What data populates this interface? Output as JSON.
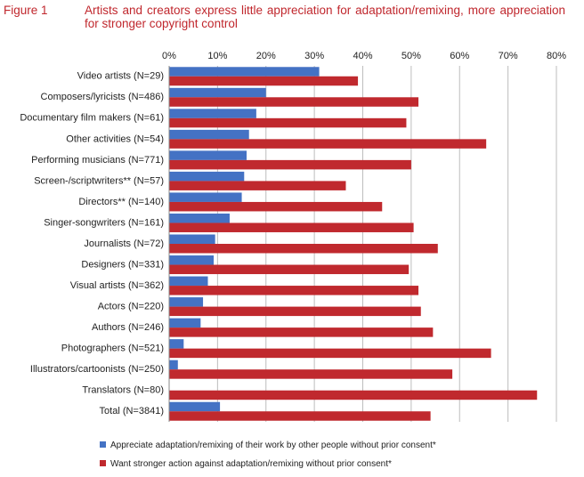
{
  "figure": {
    "label": "Figure 1",
    "title": "Artists and creators express little appreciation for adaptation/remixing, more appreciation for stronger copyright control"
  },
  "chart_data": {
    "type": "bar",
    "orientation": "horizontal",
    "title": "Artists and creators express little appreciation for adaptation/remixing, more appreciation for stronger copyright control",
    "xlim": [
      0,
      80
    ],
    "x_ticks": [
      "0%",
      "10%",
      "20%",
      "30%",
      "40%",
      "50%",
      "60%",
      "70%",
      "80%"
    ],
    "grid": true,
    "legend_position": "bottom",
    "categories": [
      "Video artists (N=29)",
      "Composers/lyricists (N=486)",
      "Documentary film makers (N=61)",
      "Other activities (N=54)",
      "Performing musicians (N=771)",
      "Screen-/scriptwriters** (N=57)",
      "Directors** (N=140)",
      "Singer-songwriters (N=161)",
      "Journalists (N=72)",
      "Designers (N=331)",
      "Visual artists (N=362)",
      "Actors (N=220)",
      "Authors (N=246)",
      "Photographers (N=521)",
      "Illustrators/cartoonists (N=250)",
      "Translators (N=80)",
      "Total (N=3841)"
    ],
    "series": [
      {
        "name": "Appreciate adaptation/remixing of their work by other people without prior consent*",
        "color": "#4472c4",
        "values": [
          31,
          20,
          18,
          16.5,
          16,
          15.5,
          15,
          12.5,
          9.5,
          9.2,
          8,
          7,
          6.5,
          3,
          1.8,
          0,
          10.5
        ]
      },
      {
        "name": "Want stronger action against adaptation/remixing without prior consent*",
        "color": "#c0292e",
        "values": [
          39,
          51.5,
          49,
          65.5,
          50,
          36.5,
          44,
          50.5,
          55.5,
          49.5,
          51.5,
          52,
          54.5,
          66.5,
          58.5,
          76,
          54
        ]
      }
    ]
  }
}
